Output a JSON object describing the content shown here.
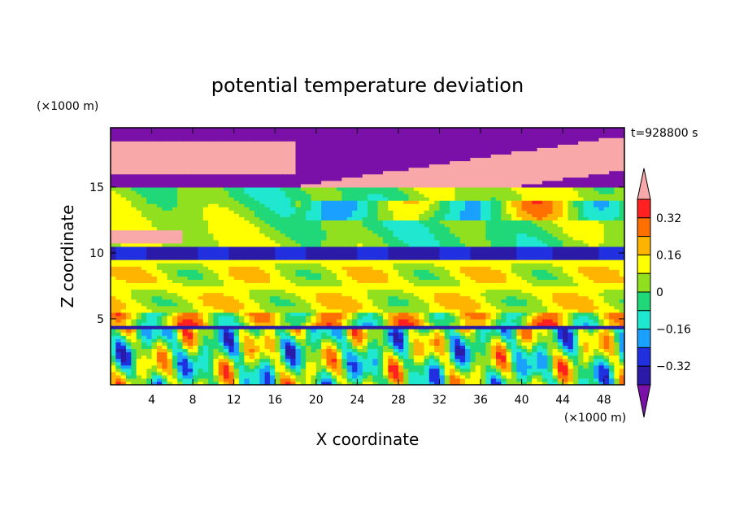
{
  "chart_data": {
    "type": "heatmap",
    "title": "potential temperature deviation",
    "time_label": "t=928800 s",
    "xlabel": "X coordinate",
    "ylabel": "Z coordinate",
    "x_unit": "(×1000 m)",
    "y_unit": "(×1000 m)",
    "xlim": [
      0,
      50
    ],
    "ylim": [
      0,
      19.5
    ],
    "x_ticks": [
      4,
      8,
      12,
      16,
      20,
      24,
      28,
      32,
      36,
      40,
      44,
      48
    ],
    "y_ticks": [
      5,
      10,
      15
    ],
    "colorbar": {
      "levels": [
        -0.4,
        -0.32,
        -0.24,
        -0.16,
        -0.08,
        0,
        0.08,
        0.16,
        0.24,
        0.32,
        0.4
      ],
      "tick_labels": [
        "0.32",
        "0.16",
        "0",
        "−0.16",
        "−0.32"
      ],
      "tick_values": [
        0.32,
        0.16,
        0,
        -0.16,
        -0.32
      ],
      "colors": [
        "#7a10a8",
        "#2b1aa8",
        "#2030e0",
        "#1aa0ff",
        "#20e8d0",
        "#20d878",
        "#90e020",
        "#ffff00",
        "#ffb400",
        "#ff7000",
        "#ff2020",
        "#f8a8a8"
      ],
      "extend": "both"
    }
  }
}
